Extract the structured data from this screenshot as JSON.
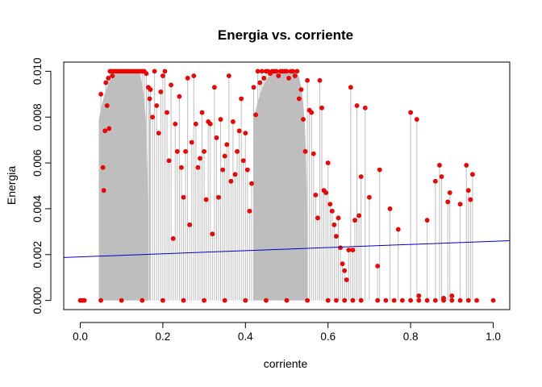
{
  "chart_data": {
    "type": "scatter",
    "title": "Energia vs. corriente",
    "xlabel": "corriente",
    "ylabel": "Energia",
    "xlim": [
      -0.04,
      1.04
    ],
    "ylim": [
      -0.0004,
      0.0104
    ],
    "x_ticks": [
      0.0,
      0.2,
      0.4,
      0.6,
      0.8,
      1.0
    ],
    "x_tick_labels": [
      "0.0",
      "0.2",
      "0.4",
      "0.6",
      "0.8",
      "1.0"
    ],
    "y_ticks": [
      0.0,
      0.002,
      0.004,
      0.006,
      0.008,
      0.01
    ],
    "y_tick_labels": [
      "0.000",
      "0.002",
      "0.004",
      "0.006",
      "0.008",
      "0.010"
    ],
    "grid": false,
    "legend": "none",
    "stem_color": "#bebebe",
    "point_color": "#ff0000",
    "regression_color": "#0000cc",
    "regression_line": {
      "intercept": 0.0019,
      "slope": 0.00068
    },
    "dense_bands": [
      {
        "x_start": 0.045,
        "x_end": 0.165,
        "y_peak": 0.01
      },
      {
        "x_start": 0.42,
        "x_end": 0.55,
        "y_peak": 0.01
      }
    ],
    "points": [
      [
        0.0,
        0.0
      ],
      [
        0.005,
        0.0
      ],
      [
        0.01,
        0.0
      ],
      [
        0.05,
        0.009
      ],
      [
        0.055,
        0.0058
      ],
      [
        0.057,
        0.0048
      ],
      [
        0.06,
        0.0074
      ],
      [
        0.062,
        0.0095
      ],
      [
        0.065,
        0.0085
      ],
      [
        0.068,
        0.0097
      ],
      [
        0.07,
        0.0075
      ],
      [
        0.072,
        0.01
      ],
      [
        0.075,
        0.01
      ],
      [
        0.078,
        0.0098
      ],
      [
        0.08,
        0.01
      ],
      [
        0.085,
        0.01
      ],
      [
        0.09,
        0.01
      ],
      [
        0.095,
        0.01
      ],
      [
        0.1,
        0.01
      ],
      [
        0.105,
        0.01
      ],
      [
        0.11,
        0.01
      ],
      [
        0.115,
        0.01
      ],
      [
        0.12,
        0.01
      ],
      [
        0.125,
        0.01
      ],
      [
        0.13,
        0.01
      ],
      [
        0.135,
        0.01
      ],
      [
        0.14,
        0.01
      ],
      [
        0.145,
        0.01
      ],
      [
        0.15,
        0.01
      ],
      [
        0.155,
        0.01
      ],
      [
        0.16,
        0.0099
      ],
      [
        0.165,
        0.0093
      ],
      [
        0.168,
        0.0088
      ],
      [
        0.17,
        0.0092
      ],
      [
        0.175,
        0.008
      ],
      [
        0.18,
        0.01
      ],
      [
        0.185,
        0.0085
      ],
      [
        0.19,
        0.0073
      ],
      [
        0.195,
        0.0091
      ],
      [
        0.2,
        0.0098
      ],
      [
        0.205,
        0.01
      ],
      [
        0.21,
        0.0082
      ],
      [
        0.215,
        0.0061
      ],
      [
        0.22,
        0.0094
      ],
      [
        0.225,
        0.0027
      ],
      [
        0.23,
        0.0077
      ],
      [
        0.235,
        0.0065
      ],
      [
        0.24,
        0.0089
      ],
      [
        0.245,
        0.0058
      ],
      [
        0.25,
        0.0045
      ],
      [
        0.255,
        0.0065
      ],
      [
        0.26,
        0.0097
      ],
      [
        0.265,
        0.0033
      ],
      [
        0.27,
        0.0069
      ],
      [
        0.275,
        0.0098
      ],
      [
        0.28,
        0.0077
      ],
      [
        0.285,
        0.0058
      ],
      [
        0.29,
        0.0062
      ],
      [
        0.295,
        0.0082
      ],
      [
        0.3,
        0.0065
      ],
      [
        0.305,
        0.0044
      ],
      [
        0.31,
        0.0078
      ],
      [
        0.315,
        0.0077
      ],
      [
        0.32,
        0.0029
      ],
      [
        0.325,
        0.0093
      ],
      [
        0.33,
        0.0071
      ],
      [
        0.335,
        0.0045
      ],
      [
        0.34,
        0.0079
      ],
      [
        0.345,
        0.0057
      ],
      [
        0.35,
        0.0063
      ],
      [
        0.355,
        0.0068
      ],
      [
        0.36,
        0.0098
      ],
      [
        0.365,
        0.0052
      ],
      [
        0.37,
        0.0078
      ],
      [
        0.375,
        0.0055
      ],
      [
        0.38,
        0.0065
      ],
      [
        0.385,
        0.0074
      ],
      [
        0.39,
        0.0088
      ],
      [
        0.395,
        0.0061
      ],
      [
        0.4,
        0.0073
      ],
      [
        0.405,
        0.0057
      ],
      [
        0.41,
        0.0039
      ],
      [
        0.415,
        0.0051
      ],
      [
        0.42,
        0.0093
      ],
      [
        0.425,
        0.0081
      ],
      [
        0.43,
        0.01
      ],
      [
        0.435,
        0.0095
      ],
      [
        0.44,
        0.01
      ],
      [
        0.445,
        0.0097
      ],
      [
        0.45,
        0.01
      ],
      [
        0.455,
        0.01
      ],
      [
        0.46,
        0.0099
      ],
      [
        0.465,
        0.01
      ],
      [
        0.47,
        0.01
      ],
      [
        0.475,
        0.01
      ],
      [
        0.48,
        0.0098
      ],
      [
        0.485,
        0.01
      ],
      [
        0.49,
        0.01
      ],
      [
        0.495,
        0.01
      ],
      [
        0.5,
        0.01
      ],
      [
        0.505,
        0.0097
      ],
      [
        0.51,
        0.01
      ],
      [
        0.515,
        0.01
      ],
      [
        0.52,
        0.0098
      ],
      [
        0.525,
        0.01
      ],
      [
        0.53,
        0.0088
      ],
      [
        0.535,
        0.0092
      ],
      [
        0.54,
        0.0079
      ],
      [
        0.545,
        0.0065
      ],
      [
        0.55,
        0.0096
      ],
      [
        0.555,
        0.0083
      ],
      [
        0.56,
        0.0082
      ],
      [
        0.565,
        0.0064
      ],
      [
        0.57,
        0.0046
      ],
      [
        0.575,
        0.0036
      ],
      [
        0.58,
        0.0096
      ],
      [
        0.585,
        0.0084
      ],
      [
        0.59,
        0.0048
      ],
      [
        0.595,
        0.0047
      ],
      [
        0.6,
        0.006
      ],
      [
        0.605,
        0.0042
      ],
      [
        0.61,
        0.0039
      ],
      [
        0.615,
        0.0033
      ],
      [
        0.62,
        0.0028
      ],
      [
        0.625,
        0.0036
      ],
      [
        0.63,
        0.0023
      ],
      [
        0.635,
        0.0016
      ],
      [
        0.64,
        0.0013
      ],
      [
        0.645,
        0.0009
      ],
      [
        0.65,
        0.0022
      ],
      [
        0.655,
        0.0093
      ],
      [
        0.66,
        0.0022
      ],
      [
        0.665,
        0.0035
      ],
      [
        0.67,
        0.0085
      ],
      [
        0.675,
        0.0037
      ],
      [
        0.68,
        0.0054
      ],
      [
        0.69,
        0.0084
      ],
      [
        0.7,
        0.0045
      ],
      [
        0.72,
        0.0015
      ],
      [
        0.725,
        0.0057
      ],
      [
        0.75,
        0.004
      ],
      [
        0.77,
        0.0031
      ],
      [
        0.8,
        0.0082
      ],
      [
        0.815,
        0.0079
      ],
      [
        0.84,
        0.0035
      ],
      [
        0.86,
        0.0052
      ],
      [
        0.87,
        0.0059
      ],
      [
        0.875,
        0.0054
      ],
      [
        0.89,
        0.0043
      ],
      [
        0.895,
        0.0047
      ],
      [
        0.92,
        0.0042
      ],
      [
        0.935,
        0.0059
      ],
      [
        0.94,
        0.0048
      ],
      [
        0.945,
        0.0044
      ],
      [
        0.95,
        0.0055
      ],
      [
        0.05,
        0.0
      ],
      [
        0.1,
        0.0
      ],
      [
        0.15,
        0.0
      ],
      [
        0.2,
        0.0
      ],
      [
        0.25,
        0.0
      ],
      [
        0.3,
        0.0
      ],
      [
        0.35,
        0.0
      ],
      [
        0.4,
        0.0
      ],
      [
        0.45,
        0.0
      ],
      [
        0.5,
        0.0
      ],
      [
        0.55,
        0.0
      ],
      [
        0.6,
        0.0
      ],
      [
        0.62,
        0.0
      ],
      [
        0.64,
        0.0
      ],
      [
        0.66,
        0.0
      ],
      [
        0.68,
        0.0
      ],
      [
        0.72,
        0.0
      ],
      [
        0.74,
        0.0
      ],
      [
        0.76,
        0.0
      ],
      [
        0.78,
        0.0
      ],
      [
        0.8,
        0.0
      ],
      [
        0.82,
        0.0
      ],
      [
        0.84,
        0.0
      ],
      [
        0.86,
        0.0
      ],
      [
        0.88,
        0.0
      ],
      [
        0.9,
        0.0
      ],
      [
        0.92,
        0.0
      ],
      [
        0.94,
        0.0
      ],
      [
        0.96,
        0.0
      ],
      [
        1.0,
        0.0
      ],
      [
        0.9,
        0.0002
      ],
      [
        0.88,
        0.0001
      ],
      [
        0.82,
        0.0002
      ]
    ]
  }
}
